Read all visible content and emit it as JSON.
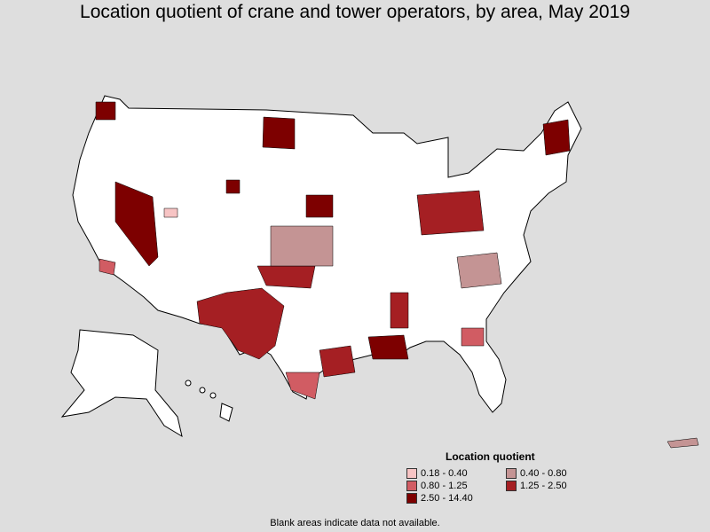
{
  "title": "Location quotient of crane and tower operators, by area, May 2019",
  "legend": {
    "title": "Location quotient",
    "items": [
      {
        "label": "0.18 - 0.40",
        "color": "#f7c4c4"
      },
      {
        "label": "0.40 - 0.80",
        "color": "#c49494"
      },
      {
        "label": "0.80 - 1.25",
        "color": "#d15c63"
      },
      {
        "label": "1.25 - 2.50",
        "color": "#a51f23"
      },
      {
        "label": "2.50 - 14.40",
        "color": "#7d0000"
      }
    ]
  },
  "footnote": "Blank areas indicate data not available.",
  "colors": {
    "background": "#dedede",
    "no_data": "#ffffff",
    "border": "#000000"
  }
}
